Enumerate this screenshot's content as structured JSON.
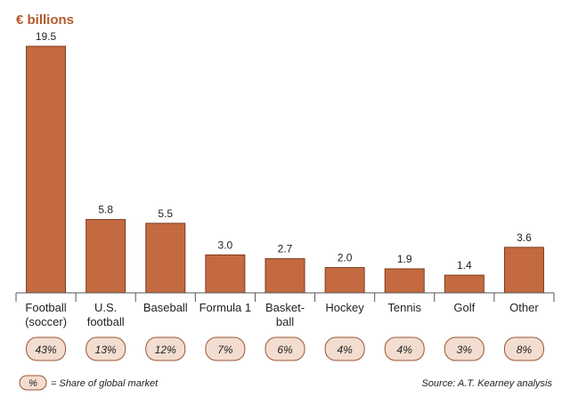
{
  "chart_data": {
    "type": "bar",
    "unit_label": "€ billions",
    "ylim": [
      0,
      20
    ],
    "categories": [
      [
        "Football",
        "(soccer)"
      ],
      [
        "U.S.",
        "football"
      ],
      [
        "Baseball"
      ],
      [
        "Formula 1"
      ],
      [
        "Basket-",
        "ball"
      ],
      [
        "Hockey"
      ],
      [
        "Tennis"
      ],
      [
        "Golf"
      ],
      [
        "Other"
      ]
    ],
    "values": [
      19.5,
      5.8,
      5.5,
      3.0,
      2.7,
      2.0,
      1.9,
      1.4,
      3.6
    ],
    "value_labels": [
      "19.5",
      "5.8",
      "5.5",
      "3.0",
      "2.7",
      "2.0",
      "1.9",
      "1.4",
      "3.6"
    ],
    "shares": [
      "43%",
      "13%",
      "12%",
      "7%",
      "6%",
      "4%",
      "4%",
      "3%",
      "8%"
    ],
    "legend": {
      "symbol": "%",
      "text": "= Share of global market"
    },
    "source": "Source: A.T. Kearney analysis",
    "colors": {
      "bar": "#c46a40",
      "bar_border": "#7c3a1c",
      "accent": "#b35a2e",
      "pill_fill": "#f3ddd0",
      "pill_border": "#9a5534"
    }
  }
}
